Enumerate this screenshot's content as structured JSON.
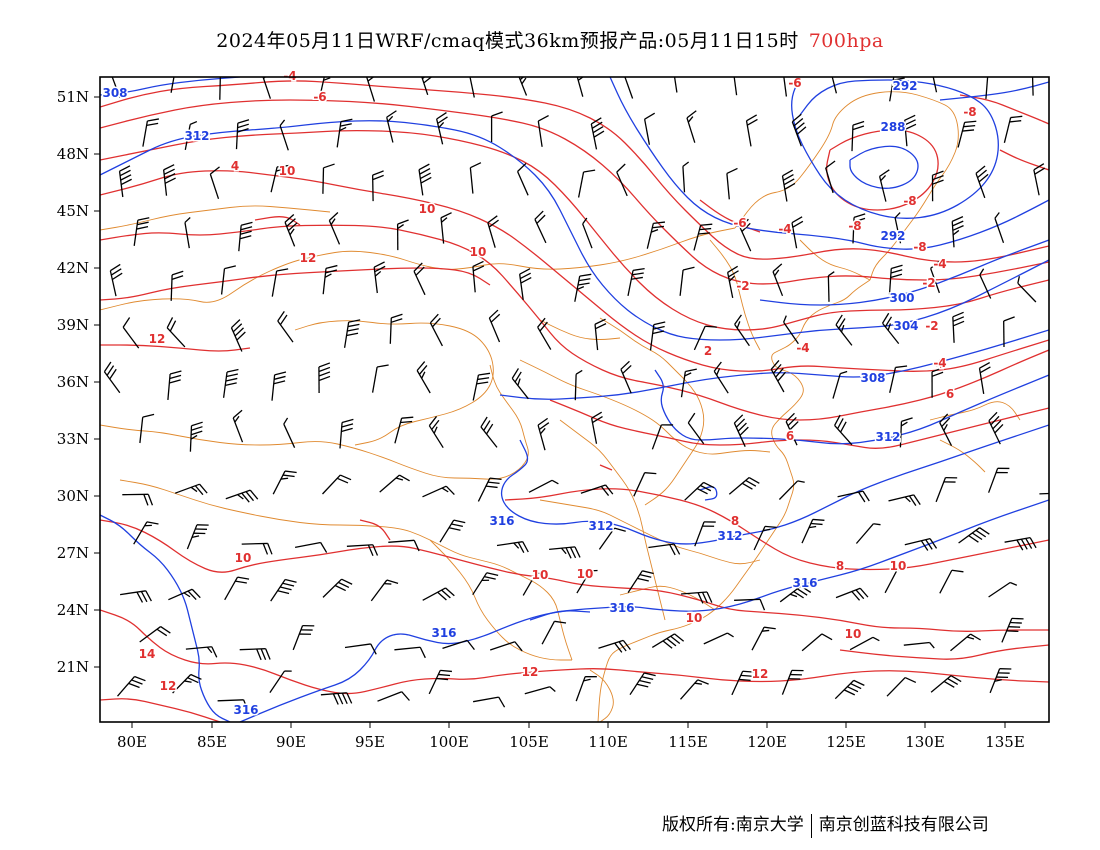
{
  "title": {
    "main": "2024年05月11日WRF/cmaq模式36km预报产品:05月11日15时",
    "level": "700hpa"
  },
  "colors": {
    "temperature": "#e03030",
    "geopotential": "#2040e0",
    "borders": "#e08a30",
    "wind": "#000000",
    "frame": "#000000"
  },
  "axes": {
    "lat_labels": [
      "51N",
      "48N",
      "45N",
      "42N",
      "39N",
      "36N",
      "33N",
      "30N",
      "27N",
      "24N",
      "21N"
    ],
    "lon_labels": [
      "80E",
      "85E",
      "90E",
      "95E",
      "100E",
      "105E",
      "110E",
      "115E",
      "120E",
      "125E",
      "130E",
      "135E"
    ]
  },
  "map": {
    "lon_range": [
      78,
      138
    ],
    "lat_range": [
      18.5,
      52.3
    ],
    "layers": [
      "temperature-isotherms",
      "geopotential-height-contours",
      "wind-barbs",
      "boundaries"
    ]
  },
  "geopotential_labels": [
    "308",
    "312",
    "292",
    "288",
    "292",
    "300",
    "304",
    "308",
    "312",
    "316",
    "312",
    "312",
    "316",
    "316",
    "316",
    "316"
  ],
  "temperature_labels": [
    "-4",
    "-6",
    "-8",
    "-8",
    "-8",
    "-8",
    "-6",
    "-6",
    "-4",
    "-4",
    "-4",
    "-2",
    "-2",
    "-2",
    "2",
    "4",
    "4",
    "6",
    "8",
    "8",
    "10",
    "10",
    "10",
    "10",
    "10",
    "10",
    "10",
    "10",
    "10",
    "12",
    "12",
    "12",
    "12",
    "14",
    "12",
    "-4",
    "8",
    "6"
  ],
  "footer": {
    "left": "版权所有:南京大学",
    "right": "南京创蓝科技有限公司"
  }
}
